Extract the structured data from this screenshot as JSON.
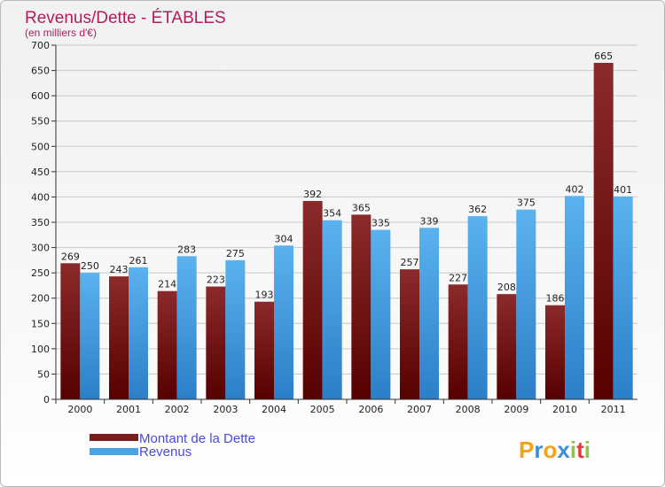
{
  "chart_data": {
    "type": "bar",
    "title": "Revenus/Dette - ÉTABLES",
    "subtitle": "(en milliers d'€)",
    "categories": [
      "2000",
      "2001",
      "2002",
      "2003",
      "2004",
      "2005",
      "2006",
      "2007",
      "2008",
      "2009",
      "2010",
      "2011"
    ],
    "series": [
      {
        "name": "Montant de la Dette",
        "color": "#7a1c1c",
        "values": [
          269,
          243,
          214,
          223,
          193,
          392,
          365,
          257,
          227,
          208,
          186,
          665
        ]
      },
      {
        "name": "Revenus",
        "color": "#4aa3e6",
        "values": [
          250,
          261,
          283,
          275,
          304,
          354,
          335,
          339,
          362,
          375,
          402,
          401
        ]
      }
    ],
    "ylim": [
      0,
      700
    ],
    "yticks": [
      0,
      50,
      100,
      150,
      200,
      250,
      300,
      350,
      400,
      450,
      500,
      550,
      600,
      650,
      700
    ],
    "grid": true,
    "legend_position": "bottom-left"
  },
  "branding": {
    "letters": [
      "P",
      "r",
      "o",
      "x",
      "i",
      "t",
      "i"
    ],
    "colors": [
      "#f5a21b",
      "#3b8fd9",
      "#f5a21b",
      "#3b8fd9",
      "#8dc63f",
      "#e23b3b",
      "#8dc63f"
    ]
  }
}
